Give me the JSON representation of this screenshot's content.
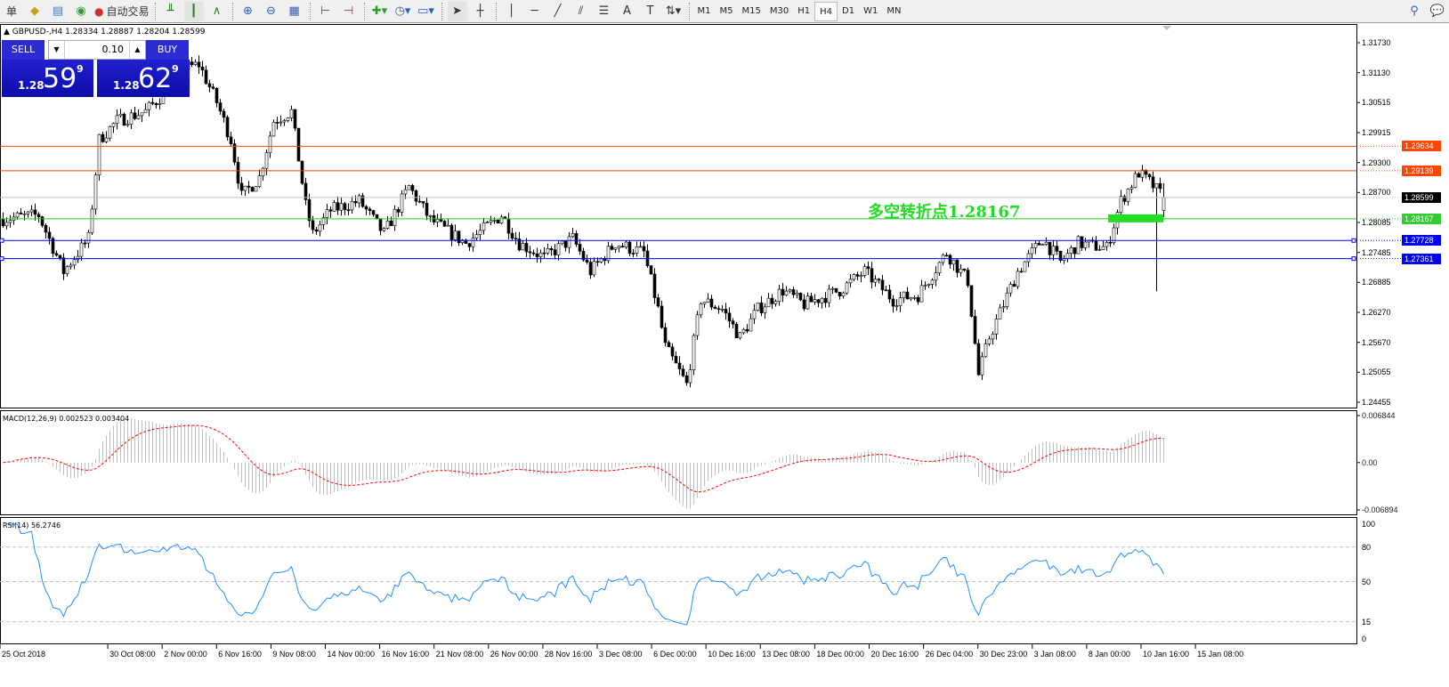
{
  "toolbar": {
    "left_label": "单",
    "autotrade_label": "自动交易",
    "timeframes": [
      "M1",
      "M5",
      "M15",
      "M30",
      "H1",
      "H4",
      "D1",
      "W1",
      "MN"
    ],
    "active_timeframe": "H4"
  },
  "chart": {
    "header": "GBPUSD-,H4  1.28334 1.28887 1.28204 1.28599",
    "symbol": "GBPUSD-",
    "timeframe": "H4",
    "ohlc": {
      "open": 1.28334,
      "high": 1.28887,
      "low": 1.28204,
      "close": 1.28599
    },
    "trade_panel": {
      "sell_label": "SELL",
      "buy_label": "BUY",
      "lot": "0.10",
      "sell_prefix": "1.28",
      "sell_big": "59",
      "sell_sup": "9",
      "buy_prefix": "1.28",
      "buy_big": "62",
      "buy_sup": "9"
    },
    "price_axis": [
      "1.31730",
      "1.31130",
      "1.30515",
      "1.29915",
      "1.29300",
      "1.28700",
      "1.28085",
      "1.27485",
      "1.26885",
      "1.26270",
      "1.25670",
      "1.25055",
      "1.24455"
    ],
    "price_range": [
      1.24455,
      1.3173
    ],
    "lines": [
      {
        "price": 1.29634,
        "label": "1.29634",
        "color": "#ff4500",
        "type": "resistance"
      },
      {
        "price": 1.29139,
        "label": "1.29139",
        "color": "#ff4500",
        "type": "resistance"
      },
      {
        "price": 1.28599,
        "label": "1.28599",
        "color": "#c0c0c0",
        "badge": "#000000",
        "type": "bid"
      },
      {
        "price": 1.28167,
        "label": "1.28167",
        "color": "#22cc22",
        "badge": "#33cc33",
        "type": "pivot"
      },
      {
        "price": 1.27728,
        "label": "1.27728",
        "color": "#0000ff",
        "type": "support"
      },
      {
        "price": 1.27361,
        "label": "1.27361",
        "color": "#0000ff",
        "type": "support"
      }
    ],
    "annotation": "多空转折点1.28167",
    "price_path": [
      [
        0,
        1.28167
      ],
      [
        10,
        1.28243
      ],
      [
        17,
        1.271
      ],
      [
        24,
        1.27767
      ],
      [
        27,
        1.29767
      ],
      [
        32,
        1.30148
      ],
      [
        40,
        1.30338
      ],
      [
        44,
        1.30624
      ],
      [
        50,
        1.31195
      ],
      [
        55,
        1.31291
      ],
      [
        60,
        1.30529
      ],
      [
        64,
        1.29767
      ],
      [
        67,
        1.28624
      ],
      [
        72,
        1.29005
      ],
      [
        76,
        1.30148
      ],
      [
        81,
        1.30338
      ],
      [
        85,
        1.28434
      ],
      [
        87,
        1.27862
      ],
      [
        92,
        1.28338
      ],
      [
        100,
        1.28529
      ],
      [
        107,
        1.27862
      ],
      [
        114,
        1.28814
      ],
      [
        120,
        1.28148
      ],
      [
        130,
        1.27672
      ],
      [
        140,
        1.28243
      ],
      [
        145,
        1.27672
      ],
      [
        152,
        1.27386
      ],
      [
        160,
        1.27767
      ],
      [
        165,
        1.271
      ],
      [
        172,
        1.27672
      ],
      [
        180,
        1.27481
      ],
      [
        184,
        1.26338
      ],
      [
        186,
        1.25576
      ],
      [
        192,
        1.24814
      ],
      [
        196,
        1.26529
      ],
      [
        202,
        1.26338
      ],
      [
        207,
        1.25767
      ],
      [
        212,
        1.26338
      ],
      [
        219,
        1.26719
      ],
      [
        225,
        1.26434
      ],
      [
        235,
        1.26719
      ],
      [
        242,
        1.271
      ],
      [
        250,
        1.26529
      ],
      [
        257,
        1.26624
      ],
      [
        265,
        1.27481
      ],
      [
        271,
        1.2691
      ],
      [
        274,
        1.25005
      ],
      [
        277,
        1.25767
      ],
      [
        285,
        1.271
      ],
      [
        292,
        1.27767
      ],
      [
        297,
        1.27291
      ],
      [
        302,
        1.27672
      ],
      [
        310,
        1.27576
      ],
      [
        314,
        1.28529
      ],
      [
        319,
        1.291
      ],
      [
        322,
        1.2891
      ],
      [
        326,
        1.28599
      ]
    ]
  },
  "macd": {
    "title": "MACD(12,26,9) 0.002523 0.003404",
    "axis": [
      "0.006844",
      "0.00",
      "-0.006894"
    ],
    "range": [
      -0.006894,
      0.006844
    ],
    "signal_color": "#ff0000",
    "hist_color": "#c0c0c0"
  },
  "rsi": {
    "title": "RSI(14) 56.2746",
    "axis": [
      "100",
      "80",
      "50",
      "15",
      "0"
    ],
    "levels": [
      80,
      50,
      15
    ],
    "color": "#1e90ff"
  },
  "time_axis": [
    "25 Oct 2018",
    "30 Oct 08:00",
    "2 Nov 00:00",
    "6 Nov 16:00",
    "9 Nov 08:00",
    "14 Nov 00:00",
    "16 Nov 16:00",
    "21 Nov 08:00",
    "26 Nov 00:00",
    "28 Nov 16:00",
    "3 Dec 08:00",
    "6 Dec 00:00",
    "10 Dec 16:00",
    "13 Dec 08:00",
    "18 Dec 00:00",
    "20 Dec 16:00",
    "26 Dec 04:00",
    "30 Dec 23:00",
    "3 Jan 08:00",
    "8 Jan 00:00",
    "10 Jan 16:00",
    "15 Jan 08:00"
  ]
}
